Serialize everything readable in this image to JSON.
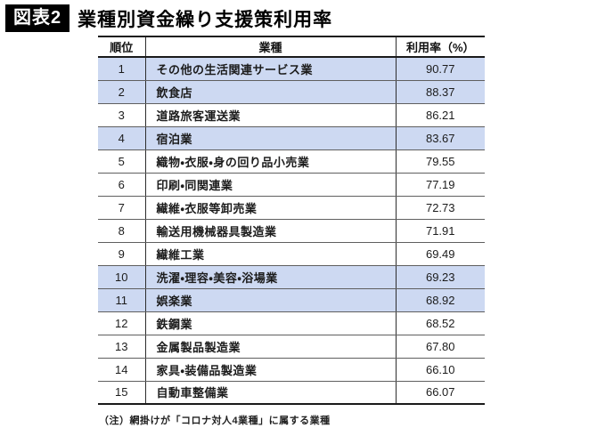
{
  "title": {
    "badge": "図表2",
    "text": "業種別資金繰り支援策利用率"
  },
  "footnote": "（注）網掛けが「コロナ対人4業種」に属する業種",
  "colors": {
    "highlight": "#cdd9f2"
  },
  "table": {
    "headers": [
      "順位",
      "業種",
      "利用率（%）"
    ]
  },
  "chart_data": {
    "type": "table",
    "title": "業種別資金繰り支援策利用率",
    "columns": [
      "順位",
      "業種",
      "利用率（%）"
    ],
    "note": "（注）網掛けが「コロナ対人4業種」に属する業種",
    "rows": [
      {
        "rank": "1",
        "industry": "その他の生活関連サービス業",
        "rate": "90.77",
        "highlighted": true
      },
      {
        "rank": "2",
        "industry": "飲食店",
        "rate": "88.37",
        "highlighted": true
      },
      {
        "rank": "3",
        "industry": "道路旅客運送業",
        "rate": "86.21",
        "highlighted": false
      },
      {
        "rank": "4",
        "industry": "宿泊業",
        "rate": "83.67",
        "highlighted": true
      },
      {
        "rank": "5",
        "industry": "織物・衣服・身の回り品小売業",
        "rate": "79.55",
        "highlighted": false
      },
      {
        "rank": "6",
        "industry": "印刷・同関連業",
        "rate": "77.19",
        "highlighted": false
      },
      {
        "rank": "7",
        "industry": "繊維・衣服等卸売業",
        "rate": "72.73",
        "highlighted": false
      },
      {
        "rank": "8",
        "industry": "輸送用機械器具製造業",
        "rate": "71.91",
        "highlighted": false
      },
      {
        "rank": "9",
        "industry": "繊維工業",
        "rate": "69.49",
        "highlighted": false
      },
      {
        "rank": "10",
        "industry": "洗濯・理容・美容・浴場業",
        "rate": "69.23",
        "highlighted": true
      },
      {
        "rank": "11",
        "industry": "娯楽業",
        "rate": "68.92",
        "highlighted": true
      },
      {
        "rank": "12",
        "industry": "鉄鋼業",
        "rate": "68.52",
        "highlighted": false
      },
      {
        "rank": "13",
        "industry": "金属製品製造業",
        "rate": "67.80",
        "highlighted": false
      },
      {
        "rank": "14",
        "industry": "家具・装備品製造業",
        "rate": "66.10",
        "highlighted": false
      },
      {
        "rank": "15",
        "industry": "自動車整備業",
        "rate": "66.07",
        "highlighted": false
      }
    ]
  }
}
